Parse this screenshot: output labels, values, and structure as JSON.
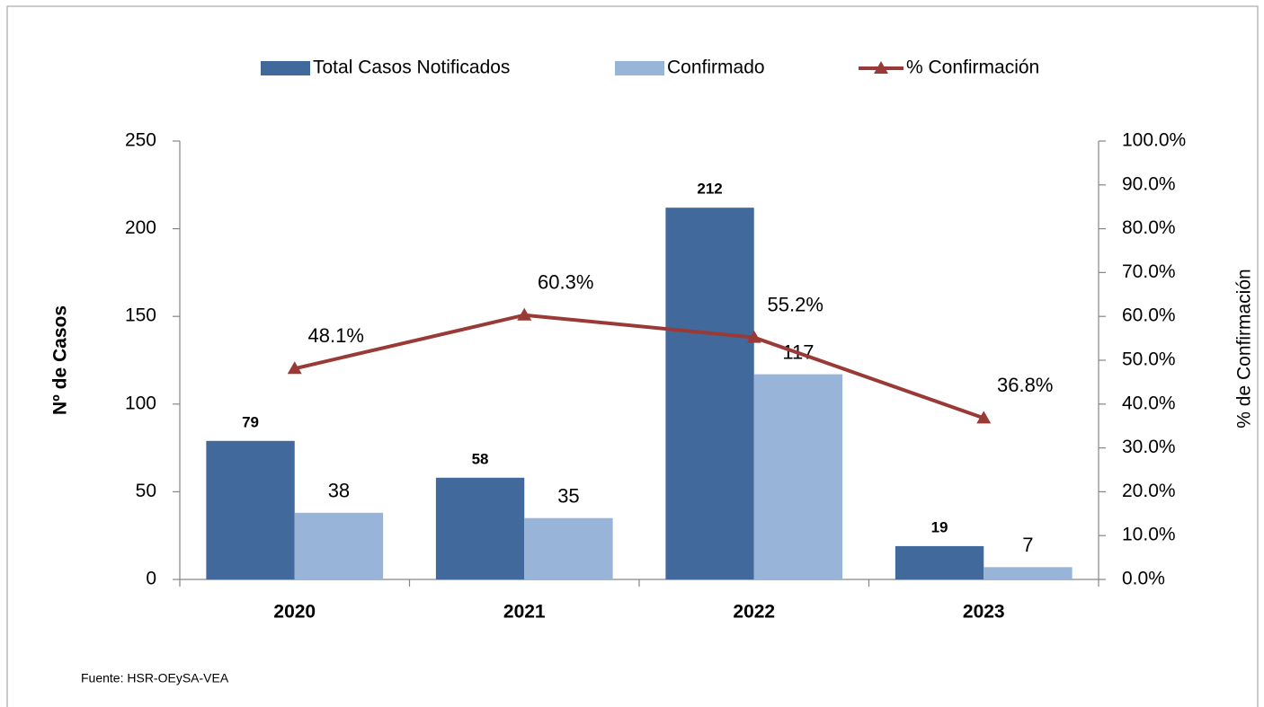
{
  "chart_data": {
    "type": "bar",
    "y_label": "Nº  de  Casos",
    "y2_label": "% de Confirmación",
    "source": "Fuente:  HSR-OEySA-VEA",
    "categories": [
      "2020",
      "2021",
      "2022",
      "2023"
    ],
    "series": [
      {
        "name": "Total Casos Notificados",
        "color": "#41699c",
        "values": [
          79,
          58,
          212,
          19
        ]
      },
      {
        "name": "Confirmado",
        "color": "#98b4d8",
        "values": [
          38,
          35,
          117,
          7
        ]
      },
      {
        "name": "% Confirmación",
        "type": "line",
        "axis": "y2",
        "color": "#993a36",
        "values": [
          48.1,
          60.3,
          55.2,
          36.8
        ],
        "value_labels": [
          "48.1%",
          "60.3%",
          "55.2%",
          "36.8%"
        ]
      }
    ],
    "ylim": [
      0,
      250
    ],
    "yticks": [
      0,
      50,
      100,
      150,
      200,
      250
    ],
    "y2lim": [
      0,
      100
    ],
    "y2ticks": [
      {
        "value": 0,
        "label": "0.0%"
      },
      {
        "value": 10,
        "label": "10.0%"
      },
      {
        "value": 20,
        "label": "20.0%"
      },
      {
        "value": 30,
        "label": "30.0%"
      },
      {
        "value": 40,
        "label": "40.0%"
      },
      {
        "value": 50,
        "label": "50.0%"
      },
      {
        "value": 60,
        "label": "60.0%"
      },
      {
        "value": 70,
        "label": "70.0%"
      },
      {
        "value": 80,
        "label": "80.0%"
      },
      {
        "value": 90,
        "label": "90.0%"
      },
      {
        "value": 100,
        "label": "100.0%"
      }
    ],
    "legend": "top"
  }
}
